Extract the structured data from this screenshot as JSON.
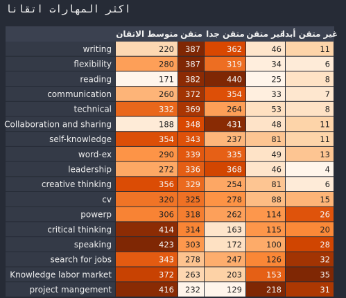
{
  "chart_data": {
    "type": "heatmap",
    "title": "اكثر المهارات اتقانا",
    "columns": [
      "متوسط الاتقان",
      "متقن",
      "متقن جدا",
      "غير متقن",
      "غير متقن أبدا"
    ],
    "rows": [
      {
        "label": "writing",
        "values": [
          220,
          387,
          362,
          46,
          11
        ]
      },
      {
        "label": "flexibility",
        "values": [
          280,
          387,
          319,
          34,
          6
        ]
      },
      {
        "label": "reading",
        "values": [
          171,
          382,
          440,
          25,
          8
        ]
      },
      {
        "label": "communication",
        "values": [
          260,
          372,
          354,
          33,
          7
        ]
      },
      {
        "label": "technical",
        "values": [
          332,
          369,
          264,
          53,
          8
        ]
      },
      {
        "label": "Collaboration and sharing",
        "values": [
          188,
          348,
          431,
          48,
          11
        ]
      },
      {
        "label": "self-knowledge",
        "values": [
          354,
          343,
          237,
          81,
          11
        ]
      },
      {
        "label": "word-ex",
        "values": [
          290,
          339,
          335,
          49,
          13
        ]
      },
      {
        "label": "leadership",
        "values": [
          272,
          336,
          368,
          46,
          4
        ]
      },
      {
        "label": "creative thinking",
        "values": [
          356,
          329,
          254,
          81,
          6
        ]
      },
      {
        "label": "cv",
        "values": [
          320,
          325,
          278,
          88,
          15
        ]
      },
      {
        "label": "powerp",
        "values": [
          306,
          318,
          262,
          114,
          26
        ]
      },
      {
        "label": "critical thinking",
        "values": [
          414,
          314,
          163,
          115,
          20
        ]
      },
      {
        "label": "speaking",
        "values": [
          423,
          303,
          172,
          100,
          28
        ]
      },
      {
        "label": "search for jobs",
        "values": [
          343,
          278,
          247,
          126,
          32
        ]
      },
      {
        "label": "Knowledge labor market",
        "values": [
          372,
          263,
          203,
          153,
          35
        ]
      },
      {
        "label": "project mangement",
        "values": [
          416,
          232,
          129,
          218,
          31
        ]
      }
    ],
    "colorscale": [
      "#fff5eb",
      "#fdd0a2",
      "#fd8d3c",
      "#d94801",
      "#7f2704"
    ]
  }
}
